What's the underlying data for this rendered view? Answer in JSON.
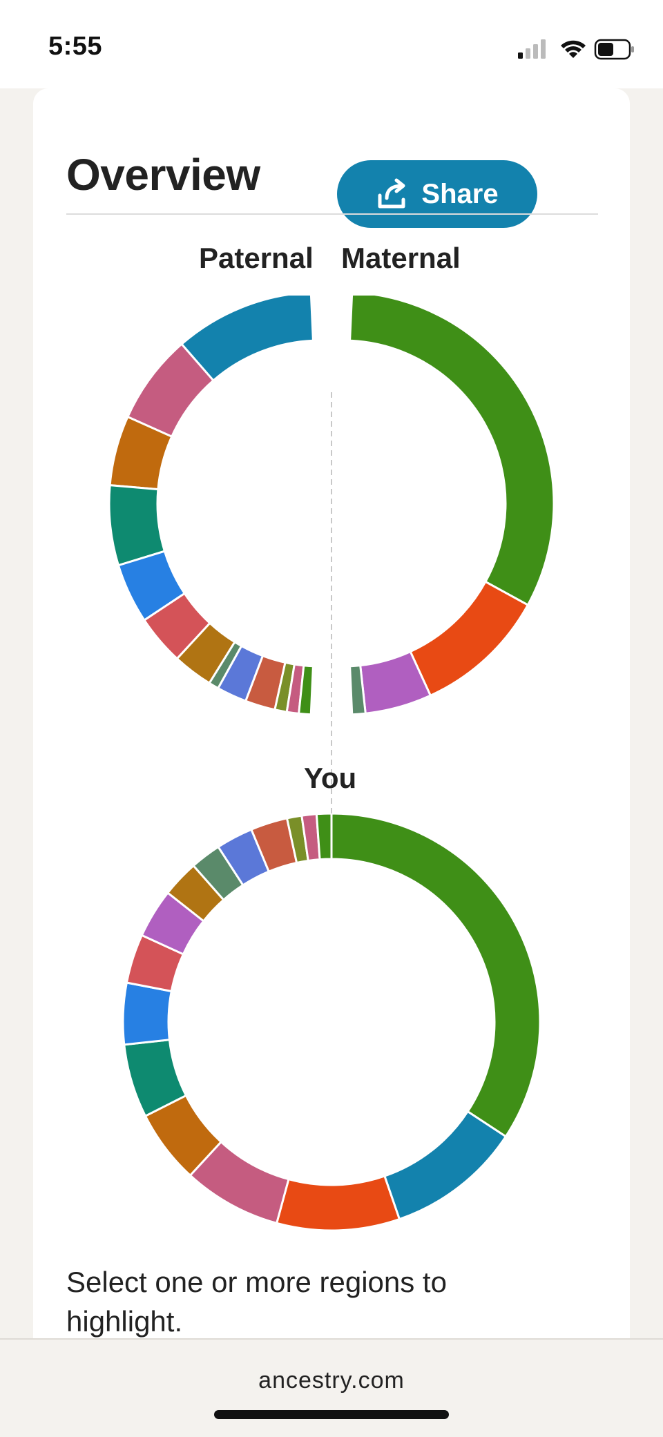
{
  "status": {
    "time": "5:55",
    "signal_icon": "cellular-signal-icon",
    "wifi_icon": "wifi-icon",
    "battery_icon": "battery-icon"
  },
  "header": {
    "title": "Overview",
    "share_label": "Share",
    "share_icon": "share-icon"
  },
  "labels": {
    "paternal": "Paternal",
    "maternal": "Maternal",
    "you": "You"
  },
  "instructions": "Select one or more regions to highlight.",
  "browser": {
    "url": "ancestry.com"
  },
  "chart_data": [
    {
      "type": "pie",
      "title": "Paternal",
      "series": [
        {
          "values": [
            14,
            9,
            7,
            8,
            6,
            5,
            4,
            1,
            3,
            3,
            1.2,
            1.2,
            1.2
          ],
          "colors": [
            "#1382ad",
            "#c55c80",
            "#c06a0e",
            "#0e8a70",
            "#2780e3",
            "#d45358",
            "#b07413",
            "#5a8a6a",
            "#5b78d8",
            "#c85b40",
            "#7a8f28",
            "#c55c80",
            "#3f8f17"
          ]
        }
      ],
      "note": ""
    },
    {
      "type": "pie",
      "title": "Maternal",
      "series": [
        {
          "values": [
            38,
            12,
            6,
            1.2
          ],
          "colors": [
            "#3f8f17",
            "#e84a14",
            "#b05fc0",
            "#5a8a6a"
          ]
        }
      ]
    },
    {
      "type": "pie",
      "title": "You",
      "series": [
        {
          "values": [
            36,
            11,
            10,
            8,
            6,
            6,
            5,
            4,
            4,
            3,
            2.5,
            3,
            3,
            1.2,
            1.2,
            1.2
          ],
          "colors": [
            "#3f8f17",
            "#1382ad",
            "#e84a14",
            "#c55c80",
            "#c06a0e",
            "#0e8a70",
            "#2780e3",
            "#d45358",
            "#b05fc0",
            "#b07413",
            "#5a8a6a",
            "#5b78d8",
            "#c85b40",
            "#7a8f28",
            "#c55c80",
            "#3f8f17"
          ]
        }
      ]
    }
  ]
}
